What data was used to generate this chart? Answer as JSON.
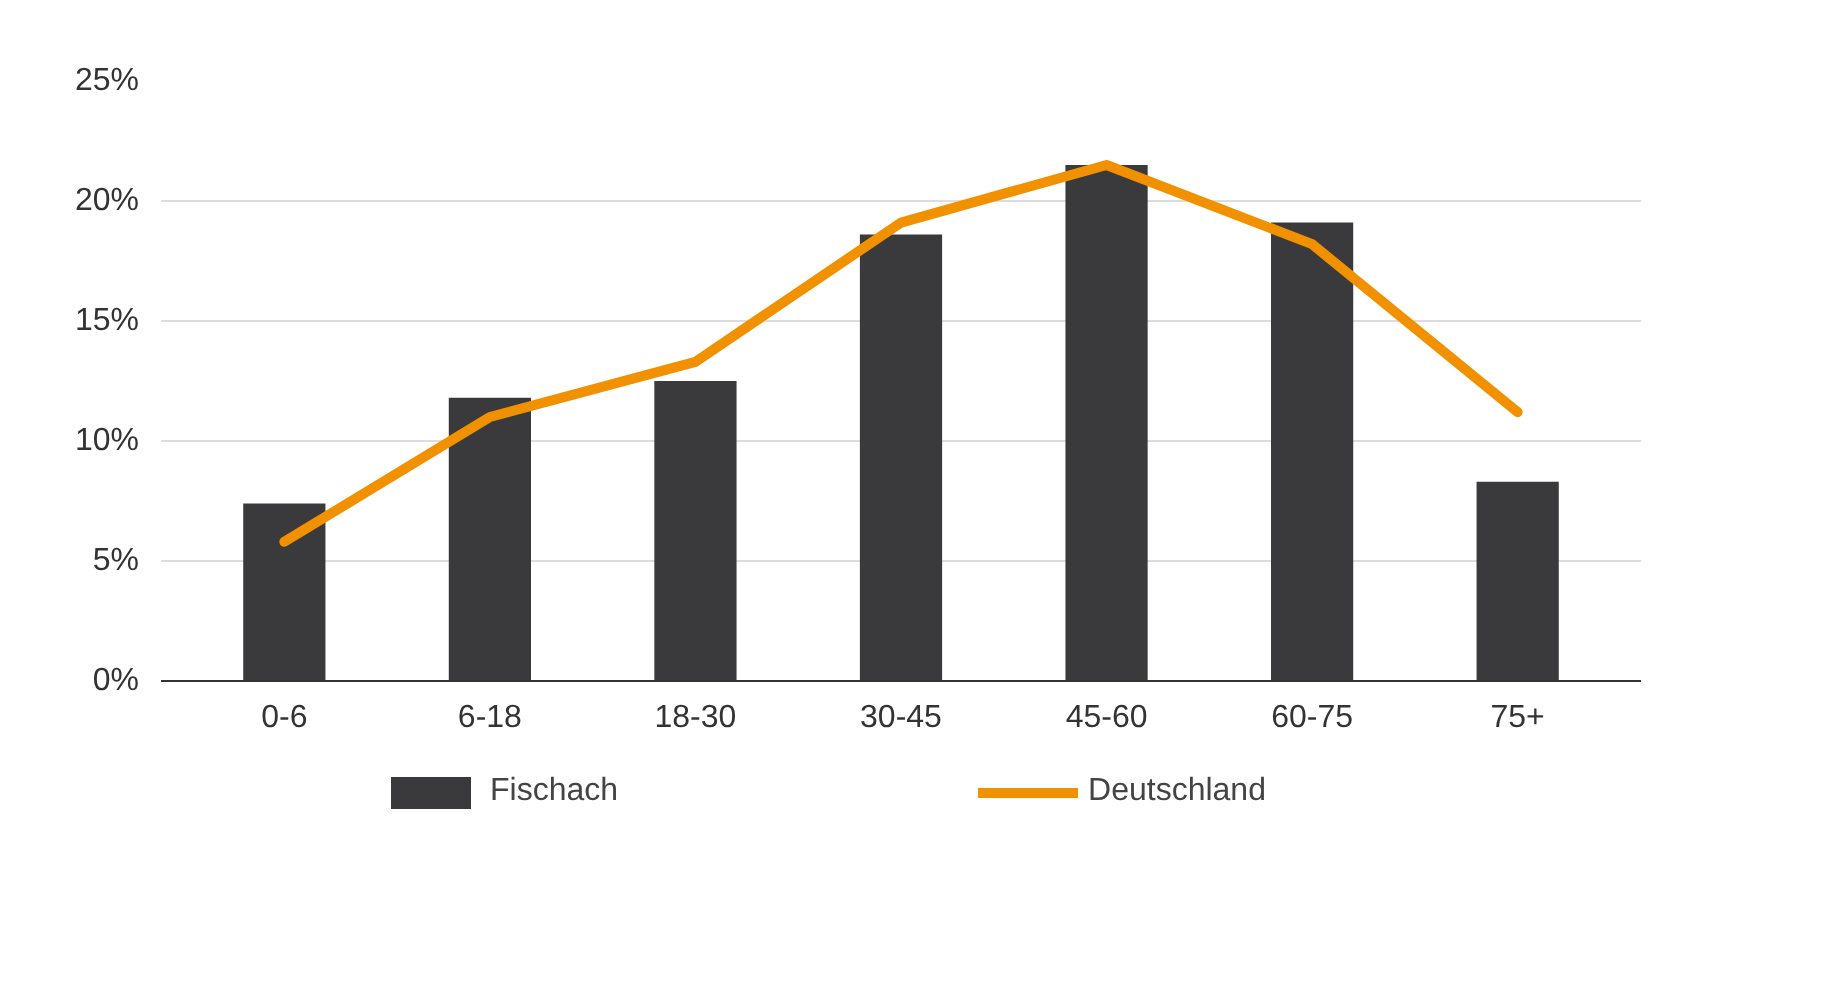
{
  "chart_data": {
    "type": "bar",
    "categories": [
      "0-6",
      "6-18",
      "18-30",
      "30-45",
      "45-60",
      "60-75",
      "75+"
    ],
    "series": [
      {
        "name": "Fischach",
        "color": "#3a3a3c",
        "values": [
          7.4,
          11.8,
          12.5,
          18.6,
          21.5,
          19.1,
          8.3
        ]
      },
      {
        "name": "Deutschland",
        "type": "line",
        "color": "#f29100",
        "values": [
          5.8,
          11.0,
          13.3,
          19.1,
          21.5,
          18.2,
          11.2
        ]
      }
    ],
    "ylim": [
      0,
      25
    ],
    "yticks": [
      {
        "value": 0,
        "label": "0%"
      },
      {
        "value": 5,
        "label": "5%"
      },
      {
        "value": 10,
        "label": "10%"
      },
      {
        "value": 15,
        "label": "15%"
      },
      {
        "value": 20,
        "label": "20%"
      },
      {
        "value": 25,
        "label": "25%"
      }
    ],
    "grid": "y",
    "legend": "bottom"
  }
}
